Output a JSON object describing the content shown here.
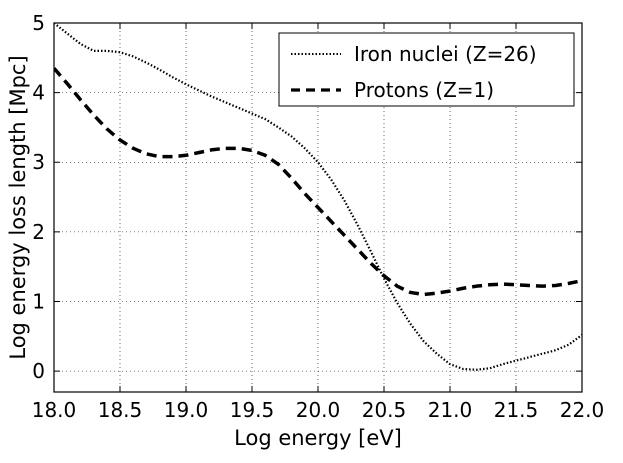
{
  "chart_data": {
    "type": "line",
    "title": "",
    "xlabel": "Log energy [eV]",
    "ylabel": "Log energy loss length [Mpc]",
    "xlim": [
      18.0,
      22.0
    ],
    "ylim": [
      -0.3,
      5.0
    ],
    "xticks": [
      18.0,
      18.5,
      19.0,
      19.5,
      20.0,
      20.5,
      21.0,
      21.5,
      22.0
    ],
    "xtick_labels": [
      "18.0",
      "18.5",
      "19.0",
      "19.5",
      "20.0",
      "20.5",
      "21.0",
      "21.5",
      "22.0"
    ],
    "yticks": [
      0,
      1,
      2,
      3,
      4,
      5
    ],
    "ytick_labels": [
      "0",
      "1",
      "2",
      "3",
      "4",
      "5"
    ],
    "grid": true,
    "legend_position": "top-right",
    "series": [
      {
        "name": "Iron nuclei (Z=26)",
        "style": "dotted",
        "color": "#000000",
        "x": [
          18.0,
          18.1,
          18.2,
          18.3,
          18.4,
          18.5,
          18.6,
          18.7,
          18.8,
          18.9,
          19.0,
          19.1,
          19.2,
          19.3,
          19.4,
          19.5,
          19.6,
          19.7,
          19.8,
          19.9,
          20.0,
          20.1,
          20.2,
          20.3,
          20.4,
          20.5,
          20.6,
          20.7,
          20.8,
          20.9,
          21.0,
          21.1,
          21.2,
          21.3,
          21.4,
          21.5,
          21.6,
          21.7,
          21.8,
          21.9,
          22.0
        ],
        "y": [
          5.0,
          4.85,
          4.7,
          4.6,
          4.6,
          4.58,
          4.52,
          4.43,
          4.33,
          4.22,
          4.12,
          4.03,
          3.94,
          3.86,
          3.78,
          3.7,
          3.62,
          3.5,
          3.37,
          3.2,
          3.0,
          2.75,
          2.45,
          2.1,
          1.72,
          1.33,
          0.98,
          0.68,
          0.43,
          0.25,
          0.1,
          0.03,
          0.02,
          0.04,
          0.1,
          0.15,
          0.2,
          0.25,
          0.3,
          0.38,
          0.52
        ]
      },
      {
        "name": "Protons (Z=1)",
        "style": "dashed",
        "color": "#000000",
        "x": [
          18.0,
          18.1,
          18.2,
          18.3,
          18.4,
          18.5,
          18.6,
          18.7,
          18.8,
          18.9,
          19.0,
          19.1,
          19.2,
          19.3,
          19.4,
          19.5,
          19.6,
          19.7,
          19.8,
          19.9,
          20.0,
          20.1,
          20.2,
          20.3,
          20.4,
          20.5,
          20.6,
          20.7,
          20.8,
          20.9,
          21.0,
          21.1,
          21.2,
          21.3,
          21.4,
          21.5,
          21.6,
          21.7,
          21.8,
          21.9,
          22.0
        ],
        "y": [
          4.35,
          4.13,
          3.9,
          3.68,
          3.48,
          3.32,
          3.2,
          3.12,
          3.08,
          3.08,
          3.1,
          3.14,
          3.18,
          3.2,
          3.2,
          3.17,
          3.1,
          2.97,
          2.77,
          2.55,
          2.35,
          2.15,
          1.95,
          1.75,
          1.55,
          1.37,
          1.22,
          1.13,
          1.1,
          1.12,
          1.15,
          1.19,
          1.22,
          1.24,
          1.25,
          1.24,
          1.23,
          1.22,
          1.23,
          1.26,
          1.3
        ]
      }
    ]
  }
}
